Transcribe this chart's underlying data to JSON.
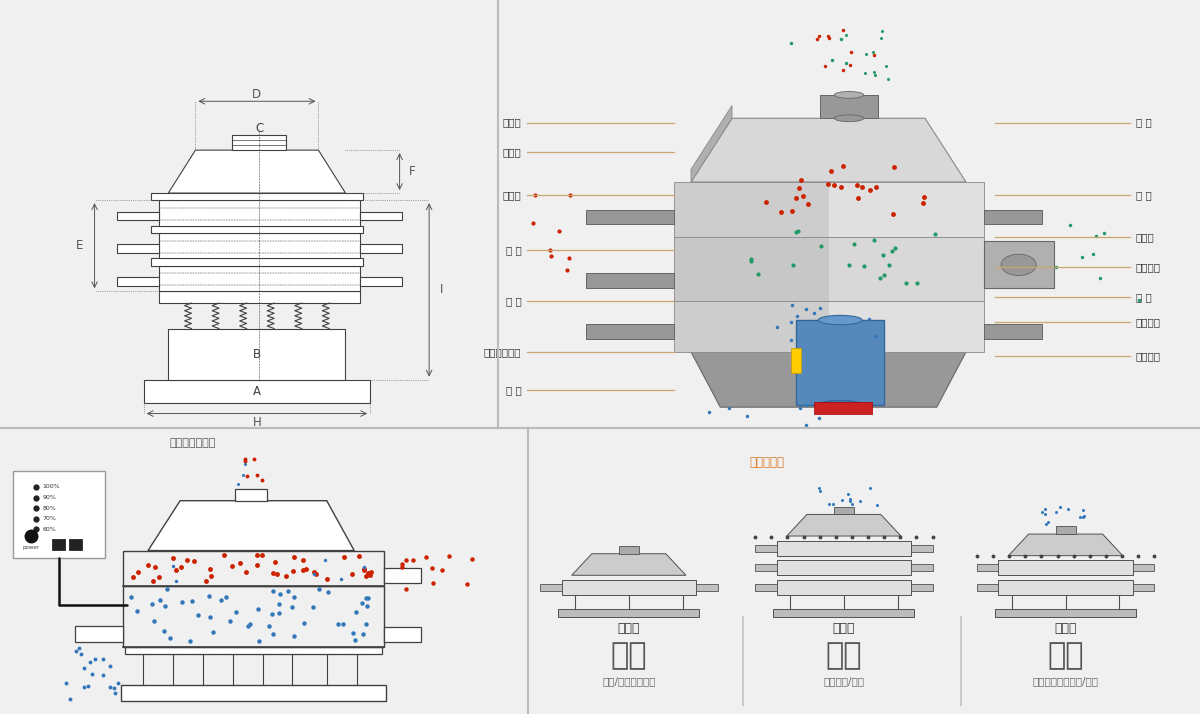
{
  "bg_color": "#f0f0f0",
  "white": "#ffffff",
  "draw_color": "#404040",
  "red_color": "#cc2200",
  "blue_color": "#3377bb",
  "green_color": "#229966",
  "teal_color": "#33aacc",
  "golden_line": "#c8a870",
  "panel_sep_color": "#bbbbbb",
  "label_color": "#333333",
  "dim_arrow_color": "#555555",
  "gray1": "#c0c0c0",
  "gray2": "#aaaaaa",
  "gray3": "#909090",
  "gray4": "#d8d8d8",
  "gray5": "#e8e8e8",
  "machine_gray": "#b8b8b8",
  "blue_arrow": "#3399cc",
  "orange_arrow": "#dd7722",
  "label_left": [
    "进料口",
    "防尘盖",
    "出料口",
    "束 环",
    "弹 簧",
    "运输固定螺栓",
    "机 座"
  ],
  "label_right": [
    "筛 网",
    "网 架",
    "加重块",
    "上部重锤",
    "筛 盘",
    "振动电机",
    "下部重锤"
  ],
  "section_labels": [
    "分级",
    "过滤",
    "除杂"
  ],
  "section_sub": [
    "颗粒/粉末准确分级",
    "去除异物/结块",
    "去除液体中的颗粒/异物"
  ],
  "machine_types": [
    "单层式",
    "三层式",
    "双层式"
  ],
  "outer_label": "外形尺寸示意图",
  "struct_label": "结构示意图",
  "dim_letters": [
    "D",
    "C",
    "F",
    "E",
    "B",
    "A",
    "H",
    "I"
  ]
}
